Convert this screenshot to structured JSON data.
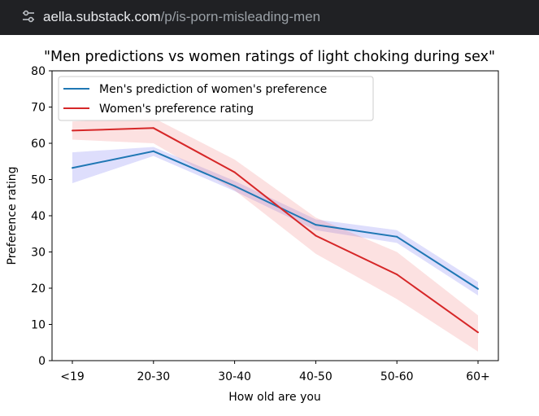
{
  "browser": {
    "url_domain": "aella.substack.com",
    "url_path": "/p/is-porn-misleading-men"
  },
  "chart_data": {
    "type": "line",
    "title": "\"Men predictions vs women ratings of light choking during sex\"",
    "xlabel": "How old are you",
    "ylabel": "Preference rating",
    "categories": [
      "<19",
      "20-30",
      "30-40",
      "40-50",
      "50-60",
      "60+"
    ],
    "ylim": [
      0,
      80
    ],
    "yticks": [
      0,
      10,
      20,
      30,
      40,
      50,
      60,
      70,
      80
    ],
    "grid": false,
    "legend_position": "top-left",
    "series": [
      {
        "name": "Men's prediction of women's preference",
        "color": "#1f77b4",
        "band_color": "#5a5af0",
        "values": [
          53.2,
          57.8,
          48.2,
          37.5,
          34.2,
          19.8
        ],
        "lower": [
          49,
          56.5,
          46.8,
          36,
          32.5,
          18
        ],
        "upper": [
          57.5,
          59,
          49.6,
          39,
          36,
          21.7
        ]
      },
      {
        "name": "Women's preference rating",
        "color": "#d62728",
        "band_color": "#f06a6a",
        "values": [
          63.5,
          64.2,
          52,
          34.5,
          23.8,
          7.8
        ],
        "lower": [
          61,
          60,
          47,
          29.5,
          17,
          2.5
        ],
        "upper": [
          66,
          67,
          55.5,
          39.5,
          30,
          12.5
        ]
      }
    ]
  }
}
